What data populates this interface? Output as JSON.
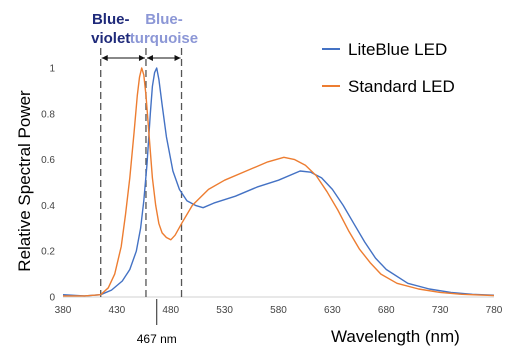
{
  "chart_data": {
    "type": "line",
    "xlabel": "Wavelength (nm)",
    "ylabel": "Relative Spectral Power",
    "xlim": [
      380,
      780
    ],
    "ylim": [
      0,
      1
    ],
    "x_ticks": [
      "380",
      "430",
      "480",
      "530",
      "580",
      "630",
      "680",
      "730",
      "780"
    ],
    "y_ticks": [
      "0",
      "0.2",
      "0.4",
      "0.6",
      "0.8",
      "1"
    ],
    "grid": false,
    "legend": "top-right",
    "series": [
      {
        "name": "LiteBlue LED",
        "color": "#4472C4",
        "points": [
          [
            380,
            0.01
          ],
          [
            400,
            0.005
          ],
          [
            415,
            0.01
          ],
          [
            425,
            0.03
          ],
          [
            435,
            0.07
          ],
          [
            442,
            0.12
          ],
          [
            448,
            0.2
          ],
          [
            452,
            0.3
          ],
          [
            455,
            0.42
          ],
          [
            458,
            0.58
          ],
          [
            461,
            0.8
          ],
          [
            463,
            0.92
          ],
          [
            465,
            0.98
          ],
          [
            467,
            1.0
          ],
          [
            469,
            0.95
          ],
          [
            472,
            0.84
          ],
          [
            476,
            0.7
          ],
          [
            482,
            0.55
          ],
          [
            488,
            0.47
          ],
          [
            495,
            0.42
          ],
          [
            503,
            0.4
          ],
          [
            510,
            0.39
          ],
          [
            520,
            0.41
          ],
          [
            540,
            0.44
          ],
          [
            560,
            0.48
          ],
          [
            580,
            0.51
          ],
          [
            600,
            0.55
          ],
          [
            610,
            0.545
          ],
          [
            620,
            0.52
          ],
          [
            630,
            0.47
          ],
          [
            640,
            0.4
          ],
          [
            650,
            0.32
          ],
          [
            660,
            0.24
          ],
          [
            670,
            0.17
          ],
          [
            680,
            0.12
          ],
          [
            700,
            0.06
          ],
          [
            720,
            0.035
          ],
          [
            740,
            0.02
          ],
          [
            760,
            0.012
          ],
          [
            780,
            0.008
          ]
        ]
      },
      {
        "name": "Standard LED",
        "color": "#ED7D31",
        "points": [
          [
            380,
            0.005
          ],
          [
            400,
            0.005
          ],
          [
            415,
            0.01
          ],
          [
            422,
            0.04
          ],
          [
            428,
            0.1
          ],
          [
            434,
            0.22
          ],
          [
            438,
            0.36
          ],
          [
            442,
            0.52
          ],
          [
            446,
            0.72
          ],
          [
            449,
            0.88
          ],
          [
            451,
            0.96
          ],
          [
            453,
            1.0
          ],
          [
            455,
            0.97
          ],
          [
            457,
            0.88
          ],
          [
            460,
            0.7
          ],
          [
            463,
            0.52
          ],
          [
            466,
            0.4
          ],
          [
            469,
            0.32
          ],
          [
            472,
            0.28
          ],
          [
            476,
            0.26
          ],
          [
            480,
            0.25
          ],
          [
            484,
            0.27
          ],
          [
            490,
            0.32
          ],
          [
            500,
            0.4
          ],
          [
            515,
            0.47
          ],
          [
            530,
            0.51
          ],
          [
            550,
            0.55
          ],
          [
            570,
            0.59
          ],
          [
            585,
            0.61
          ],
          [
            595,
            0.6
          ],
          [
            605,
            0.575
          ],
          [
            615,
            0.53
          ],
          [
            625,
            0.46
          ],
          [
            635,
            0.38
          ],
          [
            645,
            0.29
          ],
          [
            655,
            0.21
          ],
          [
            665,
            0.15
          ],
          [
            675,
            0.1
          ],
          [
            690,
            0.06
          ],
          [
            710,
            0.035
          ],
          [
            730,
            0.02
          ],
          [
            750,
            0.012
          ],
          [
            780,
            0.006
          ]
        ]
      }
    ],
    "bands": [
      {
        "label": "Blue-\nviolet",
        "line1": "Blue-",
        "line2": "violet",
        "x_start": 415,
        "x_end": 457,
        "color": "#1F2A7A"
      },
      {
        "label": "Blue-\nturquoise",
        "line1": "Blue-",
        "line2": "turquoise",
        "x_start": 457,
        "x_end": 490,
        "color": "#8C97D6"
      }
    ],
    "marker": {
      "x": 467,
      "label": "467 nm"
    }
  }
}
